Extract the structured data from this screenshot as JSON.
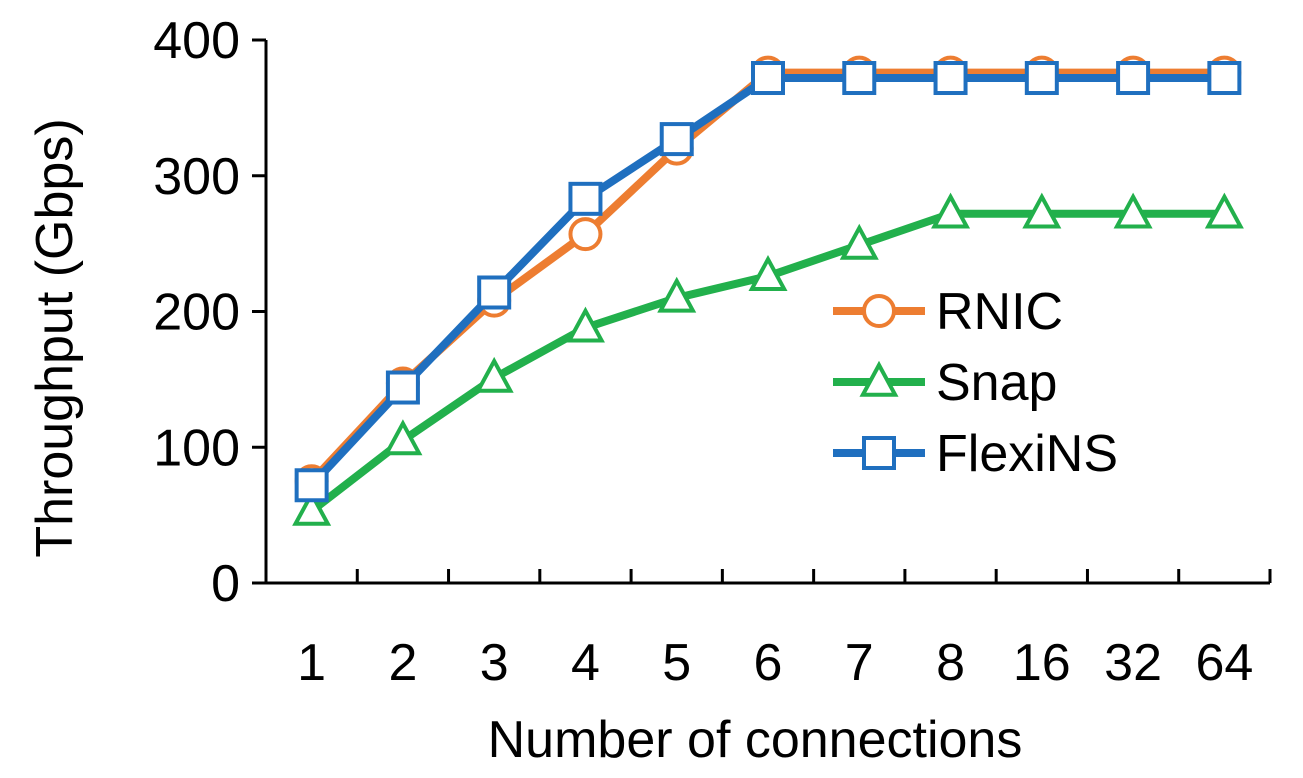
{
  "chart_data": {
    "type": "line",
    "title": "",
    "xlabel": "Number of connections",
    "ylabel": "Throughput (Gbps)",
    "categories": [
      "1",
      "2",
      "3",
      "4",
      "5",
      "6",
      "7",
      "8",
      "16",
      "32",
      "64"
    ],
    "ylim": [
      0,
      400
    ],
    "yticks": [
      "0",
      "100",
      "200",
      "300",
      "400"
    ],
    "grid": false,
    "legend_position": "right-middle",
    "series": [
      {
        "name": "RNIC",
        "color": "#ED7D31",
        "marker": "circle",
        "values": [
          75,
          147,
          208,
          257,
          320,
          376,
          376,
          376,
          376,
          376,
          376
        ]
      },
      {
        "name": "Snap",
        "color": "#22B04C",
        "marker": "triangle",
        "values": [
          53,
          105,
          151,
          188,
          210,
          226,
          249,
          272,
          272,
          272,
          272
        ]
      },
      {
        "name": "FlexiNS",
        "color": "#1F6FBF",
        "marker": "square",
        "values": [
          72,
          144,
          214,
          283,
          327,
          372,
          372,
          372,
          372,
          372,
          372
        ]
      }
    ]
  }
}
